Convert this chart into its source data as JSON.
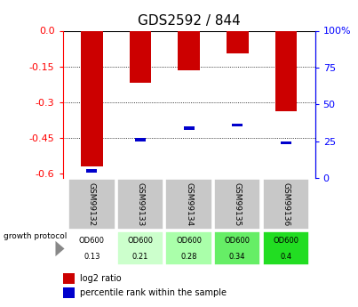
{
  "title": "GDS2592 / 844",
  "samples": [
    "GSM99132",
    "GSM99133",
    "GSM99134",
    "GSM99135",
    "GSM99136"
  ],
  "log2_ratio": [
    -0.57,
    -0.22,
    -0.165,
    -0.095,
    -0.34
  ],
  "percentile_rank": [
    5,
    26,
    34,
    36,
    24
  ],
  "od600_values": [
    "0.13",
    "0.21",
    "0.28",
    "0.34",
    "0.4"
  ],
  "od600_colors": [
    "#ffffff",
    "#ccffcc",
    "#aaffaa",
    "#66ee66",
    "#22dd22"
  ],
  "bar_color": "#cc0000",
  "percentile_color": "#0000cc",
  "ylim_left": [
    -0.62,
    0.0
  ],
  "ylim_right": [
    0,
    100
  ],
  "yticks_left": [
    0.0,
    -0.15,
    -0.3,
    -0.45,
    -0.6
  ],
  "yticks_right": [
    100,
    75,
    50,
    25,
    0
  ],
  "gridlines": [
    -0.15,
    -0.3,
    -0.45
  ],
  "bar_width": 0.45,
  "legend_red": "log2 ratio",
  "legend_blue": "percentile rank within the sample",
  "growth_protocol_label": "growth protocol",
  "background_chart": "#ffffff",
  "title_fontsize": 11,
  "cell_gray": "#c8c8c8"
}
